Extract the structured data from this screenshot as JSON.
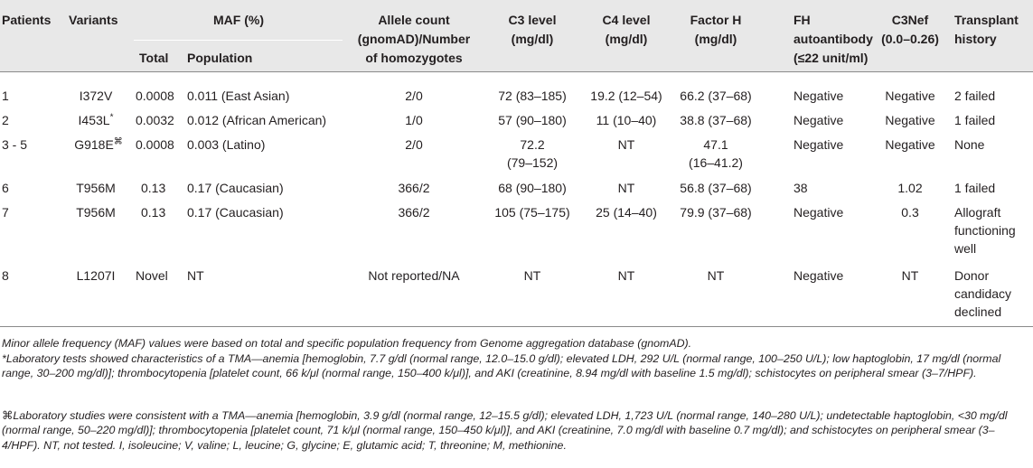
{
  "header": {
    "patients": "Patients",
    "variants": "Variants",
    "maf": "MAF (%)",
    "maf_total": "Total",
    "maf_population": "Population",
    "allele_count_l1": "Allele count",
    "allele_count_l2": "(gnomAD)/Number",
    "allele_count_l3": "of homozygotes",
    "c3_l1": "C3 level",
    "c3_l2": "(mg/dl)",
    "c4_l1": "C4 level",
    "c4_l2": "(mg/dl)",
    "fh_l1": "Factor H",
    "fh_l2": "(mg/dl)",
    "fhab_l1": "FH",
    "fhab_l2": "autoantibody",
    "fhab_l3": "(≤22 unit/ml)",
    "c3nef_l1": "C3Nef",
    "c3nef_l2": "(0.0–0.26)",
    "transplant_l1": "Transplant",
    "transplant_l2": "history"
  },
  "rows": [
    {
      "patient": "1",
      "variant": "I372V",
      "variant_mark": "",
      "maf_total": "0.0008",
      "population": "0.011 (East Asian)",
      "allele": "2/0",
      "c3": "72 (83–185)",
      "c3_b": "",
      "c4": "19.2 (12–54)",
      "fh": "66.2 (37–68)",
      "fh_b": "",
      "fhab": "Negative",
      "c3nef": "Negative",
      "tx": [
        "2 failed"
      ]
    },
    {
      "patient": "2",
      "variant": "I453L",
      "variant_mark": "*",
      "maf_total": "0.0032",
      "population": "0.012 (African American)",
      "allele": "1/0",
      "c3": "57 (90–180)",
      "c3_b": "",
      "c4": "11 (10–40)",
      "fh": "38.8 (37–68)",
      "fh_b": "",
      "fhab": "Negative",
      "c3nef": "Negative",
      "tx": [
        "1 failed"
      ]
    },
    {
      "patient": "3 - 5",
      "variant": "G918E",
      "variant_mark": "⌘",
      "maf_total": "0.0008",
      "population": "0.003 (Latino)",
      "allele": "2/0",
      "c3": "72.2",
      "c3_b": "(79–152)",
      "c4": "NT",
      "fh": "47.1",
      "fh_b": "(16–41.2)",
      "fhab": "Negative",
      "c3nef": "Negative",
      "tx": [
        "None"
      ]
    },
    {
      "patient": "6",
      "variant": "T956M",
      "variant_mark": "",
      "maf_total": "0.13",
      "population": "0.17 (Caucasian)",
      "allele": "366/2",
      "c3": "68 (90–180)",
      "c3_b": "",
      "c4": "NT",
      "fh": "56.8 (37–68)",
      "fh_b": "",
      "fhab": "38",
      "c3nef": "1.02",
      "tx": [
        "1 failed"
      ]
    },
    {
      "patient": "7",
      "variant": "T956M",
      "variant_mark": "",
      "maf_total": "0.13",
      "population": "0.17 (Caucasian)",
      "allele": "366/2",
      "c3": "105 (75–175)",
      "c3_b": "",
      "c4": "25 (14–40)",
      "fh": "79.9 (37–68)",
      "fh_b": "",
      "fhab": "Negative",
      "c3nef": "0.3",
      "tx": [
        "Allograft",
        "functioning",
        "well"
      ]
    },
    {
      "patient": "8",
      "variant": "L1207I",
      "variant_mark": "",
      "maf_total": "Novel",
      "population": "NT",
      "allele": "Not reported/NA",
      "c3": "NT",
      "c3_b": "",
      "c4": "NT",
      "fh": "NT",
      "fh_b": "",
      "fhab": "Negative",
      "c3nef": "NT",
      "tx": [
        "Donor",
        "candidacy",
        "declined"
      ]
    }
  ],
  "footnotes": {
    "maf_note": "Minor allele frequency (MAF) values were based on total and specific population frequency from Genome aggregation database (gnomAD).",
    "star_symbol": "*",
    "star_note": "Laboratory tests showed characteristics of a TMA—anemia [hemoglobin, 7.7 g/dl (normal range, 12.0–15.0 g/dl); elevated LDH, 292 U/L (normal range, 100–250 U/L); low haptoglobin, 17 mg/dl (normal range, 30–200 mg/dl)]; thrombocytopenia [platelet count, 66 k/μl (normal range, 150–400 k/μl)], and AKI (creatinine, 8.94 mg/dl with baseline 1.5 mg/dl); schistocytes on peripheral smear (3–7/HPF).",
    "cmd_symbol": "⌘",
    "cmd_note": "Laboratory studies were consistent with a TMA—anemia [hemoglobin, 3.9 g/dl (normal range, 12–15.5 g/dl); elevated LDH, 1,723 U/L (normal range, 140–280 U/L); undetectable haptoglobin, <30 mg/dl (normal range, 50–220 mg/dl)]; thrombocytopenia [platelet count, 71 k/μl (normal range, 150–450 k/μl)], and AKI (creatinine, 7.0 mg/dl with baseline 0.7 mg/dl); and schistocytes on peripheral smear (3–4/HPF). NT, not tested. I, isoleucine; V, valine; L, leucine; G, glycine; E, glutamic acid; T, threonine; M, methionine."
  }
}
